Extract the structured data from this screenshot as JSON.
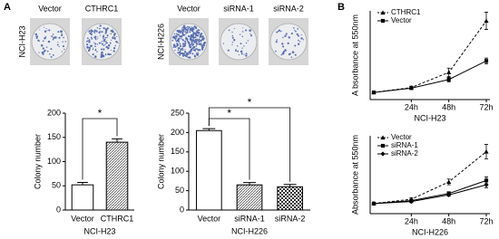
{
  "figure": {
    "panel_labels": [
      "A",
      "B"
    ],
    "photos": [
      {
        "cell_line": "NCI-H23",
        "labels": [
          "Vector",
          "CTHRC1"
        ]
      },
      {
        "cell_line": "NCI-H226",
        "labels": [
          "Vector",
          "siRNA-1",
          "siRNA-2"
        ]
      }
    ]
  },
  "chart_data": [
    {
      "type": "bar",
      "ylabel": "Colony number",
      "xlabel": "NCI-H23",
      "categories": [
        "Vector",
        "CTHRC1"
      ],
      "values": [
        52,
        140
      ],
      "errors": [
        5,
        7
      ],
      "fills": [
        "white",
        "hatch"
      ],
      "ylim": [
        0,
        200
      ],
      "yticks": [
        0,
        50,
        100,
        150,
        200
      ],
      "significance": [
        {
          "from": 0,
          "to": 1,
          "label": "*"
        }
      ]
    },
    {
      "type": "bar",
      "ylabel": "Colony number",
      "xlabel": "NCI-H226",
      "categories": [
        "Vector",
        "siRNA-1",
        "siRNA-2"
      ],
      "values": [
        205,
        65,
        60
      ],
      "errors": [
        5,
        6,
        6
      ],
      "fills": [
        "white",
        "hatch",
        "check"
      ],
      "ylim": [
        0,
        250
      ],
      "yticks": [
        0,
        50,
        100,
        150,
        200,
        250
      ],
      "significance": [
        {
          "from": 0,
          "to": 1,
          "label": "*"
        },
        {
          "from": 0,
          "to": 2,
          "label": "*"
        }
      ]
    },
    {
      "type": "line",
      "ylabel": "A bsorbance at 550nm",
      "xlabel": "NCI-H23",
      "x": [
        0,
        24,
        48,
        72
      ],
      "xlim": [
        0,
        72
      ],
      "xticks": [
        {
          "value": 24,
          "label": "24h"
        },
        {
          "value": 48,
          "label": "48h"
        },
        {
          "value": 72,
          "label": "72h"
        }
      ],
      "ylim": [
        0.2,
        3.3
      ],
      "legend": "top-left",
      "color": "#000000",
      "series": [
        {
          "name": "CTHRC1",
          "marker": "triangle",
          "dashed": true,
          "values": [
            0.45,
            0.62,
            1.15,
            2.95
          ],
          "errors": [
            0.02,
            0.05,
            0.15,
            0.3
          ]
        },
        {
          "name": "Vector",
          "marker": "square",
          "dashed": false,
          "values": [
            0.45,
            0.6,
            0.9,
            1.55
          ],
          "errors": [
            0.02,
            0.04,
            0.08,
            0.1
          ]
        }
      ]
    },
    {
      "type": "line",
      "ylabel": "Absorbance at 550nm",
      "xlabel": "NCI-H226",
      "x": [
        0,
        24,
        48,
        72
      ],
      "xlim": [
        0,
        72
      ],
      "xticks": [
        {
          "value": 24,
          "label": "24h"
        },
        {
          "value": 48,
          "label": "48h"
        },
        {
          "value": 72,
          "label": "72h"
        }
      ],
      "ylim": [
        0.2,
        2.9
      ],
      "legend": "top-left",
      "color": "#000000",
      "series": [
        {
          "name": "Vector",
          "marker": "triangle",
          "dashed": true,
          "values": [
            0.55,
            0.7,
            1.3,
            2.35
          ],
          "errors": [
            0.02,
            0.05,
            0.1,
            0.25
          ]
        },
        {
          "name": "siRNA-1",
          "marker": "square",
          "dashed": false,
          "values": [
            0.55,
            0.65,
            0.9,
            1.35
          ],
          "errors": [
            0.02,
            0.04,
            0.06,
            0.12
          ]
        },
        {
          "name": "siRNA-2",
          "marker": "diamond",
          "dashed": false,
          "values": [
            0.55,
            0.62,
            0.85,
            1.2
          ],
          "errors": [
            0.02,
            0.04,
            0.05,
            0.1
          ]
        }
      ]
    }
  ]
}
